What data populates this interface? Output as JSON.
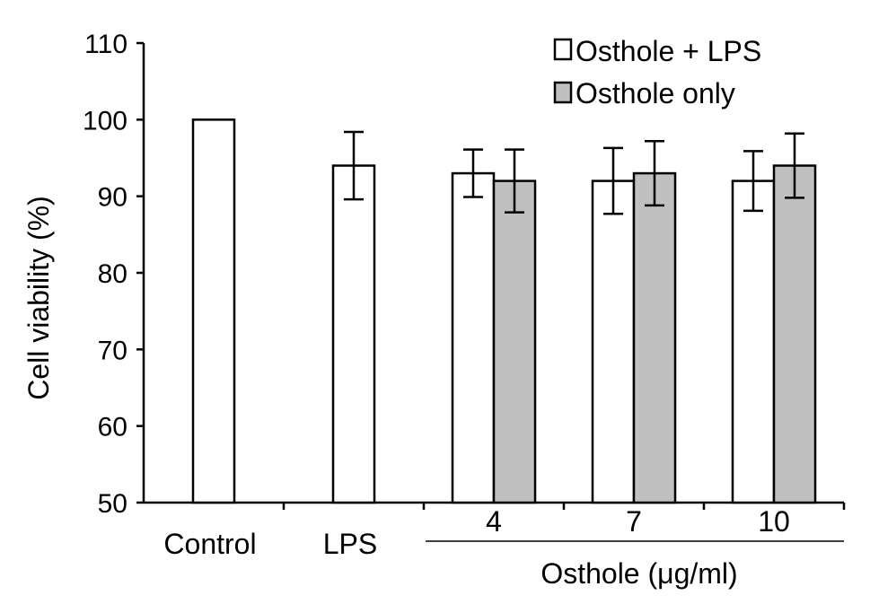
{
  "chart_data": {
    "type": "bar",
    "title": "",
    "ylabel": "Cell viability (%)",
    "xlabel": "Osthole (μg/ml)",
    "ylim": [
      50,
      110
    ],
    "yticks": [
      50,
      60,
      70,
      80,
      90,
      100,
      110
    ],
    "grid": false,
    "legend_position": "top-right",
    "categories": [
      "Control",
      "LPS",
      "4",
      "7",
      "10"
    ],
    "series": [
      {
        "name": "Osthole + LPS",
        "color": "#ffffff",
        "values": [
          100,
          94,
          93,
          92,
          92
        ],
        "errors": [
          0,
          4.4,
          3.1,
          4.3,
          3.9
        ]
      },
      {
        "name": "Osthole only",
        "color": "#c0c0c0",
        "values": [
          null,
          null,
          92,
          93,
          94
        ],
        "errors": [
          null,
          null,
          4.1,
          4.2,
          4.2
        ]
      }
    ]
  }
}
